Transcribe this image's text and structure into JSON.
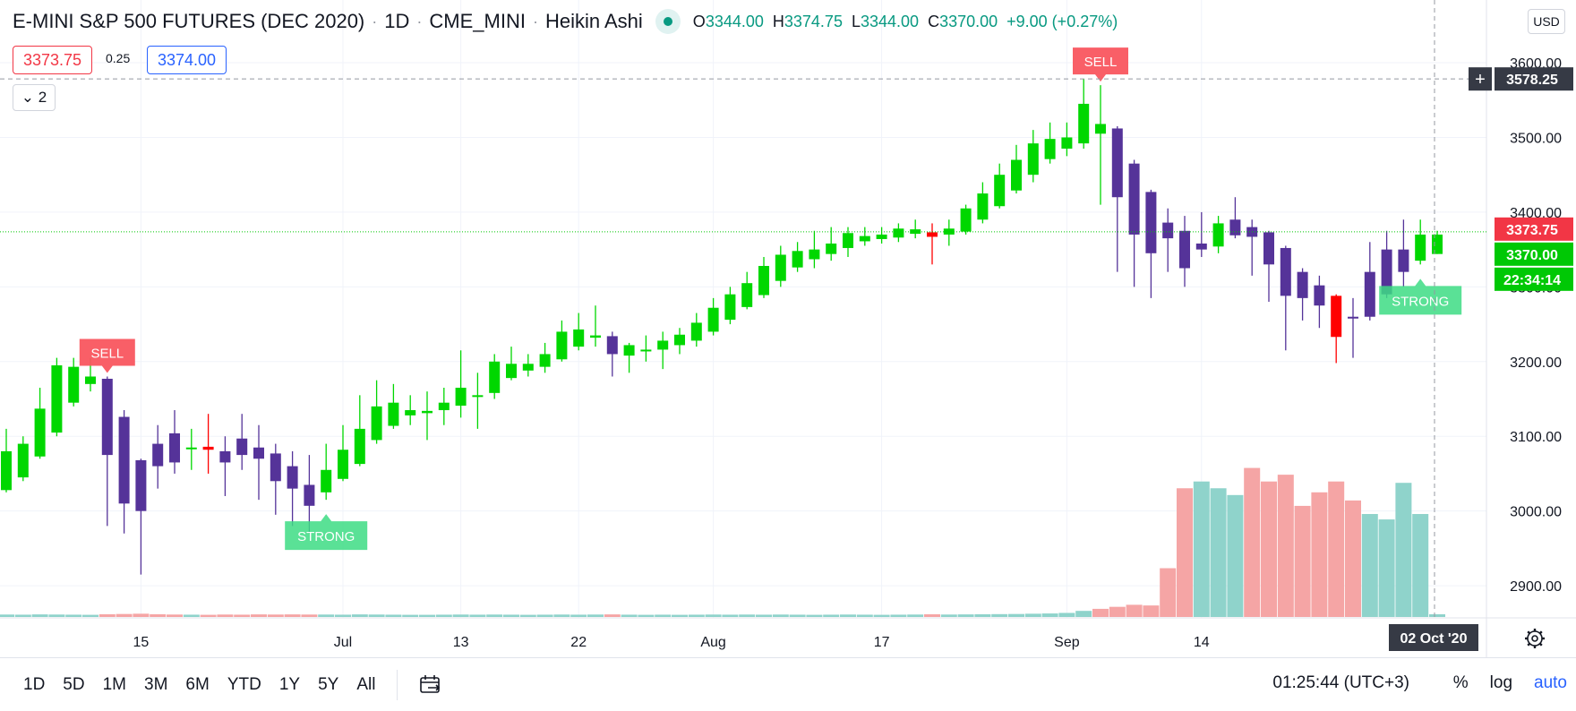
{
  "header": {
    "symbol": "E-MINI S&P 500 FUTURES (DEC 2020)",
    "interval": "1D",
    "exchange": "CME_MINI",
    "chart_style": "Heikin Ashi",
    "ohlc": {
      "o_label": "O",
      "o": "3344.00",
      "h_label": "H",
      "h": "3374.75",
      "l_label": "L",
      "l": "3344.00",
      "c_label": "C",
      "c": "3370.00",
      "change": "+9.00 (+0.27%)"
    }
  },
  "quote": {
    "bid": "3373.75",
    "spread": "0.25",
    "ask": "3374.00"
  },
  "indicators_toggle": {
    "count": "2"
  },
  "price_axis": {
    "currency_button": "USD",
    "crosshair_label": "3578.25",
    "last_price_label": "3373.75",
    "close_label": "3370.00",
    "countdown_label": "22:34:14"
  },
  "time_axis": {
    "crosshair_label": "02 Oct '20"
  },
  "signals": {
    "sell_label": "SELL",
    "strong_label": "STRONG"
  },
  "bottom_toolbar": {
    "ranges": [
      "1D",
      "5D",
      "1M",
      "3M",
      "6M",
      "YTD",
      "1Y",
      "5Y",
      "All"
    ],
    "clock": "01:25:44 (UTC+3)",
    "percent_label": "%",
    "log_label": "log",
    "auto_label": "auto"
  },
  "colors": {
    "bull": "#00d700",
    "bear": "#553399",
    "alert_bar": "#ff0000",
    "sell_signal": "#f9565f",
    "strong_signal": "#3ddc84",
    "volume_up": "#8fd3cb",
    "volume_down": "#f5a5a5",
    "last_price_bg": "#f23645",
    "close_bg": "#00c805"
  },
  "chart_data": {
    "type": "candlestick",
    "title": "E-MINI S&P 500 FUTURES (DEC 2020)",
    "interval": "1D",
    "ylim": [
      2845,
      3630
    ],
    "y_ticks": [
      2900,
      3000,
      3100,
      3200,
      3300,
      3400,
      3500,
      3600
    ],
    "y_tick_labels": [
      "2900.00",
      "3000.00",
      "3100.00",
      "3200.00",
      "3300.00",
      "3400.00",
      "3500.00",
      "3600.00"
    ],
    "x_ticks": [
      "15",
      "Jul",
      "13",
      "22",
      "Aug",
      "17",
      "Sep",
      "14"
    ],
    "x_tick_index": [
      8,
      20,
      27,
      34,
      42,
      52,
      63,
      71
    ],
    "grid": true,
    "candles": [
      {
        "o": 3028,
        "h": 3110,
        "l": 3025,
        "c": 3080,
        "bar": "bull"
      },
      {
        "o": 3045,
        "h": 3100,
        "l": 3040,
        "c": 3090,
        "bar": "bull"
      },
      {
        "o": 3073,
        "h": 3165,
        "l": 3070,
        "c": 3137,
        "bar": "bull"
      },
      {
        "o": 3105,
        "h": 3205,
        "l": 3100,
        "c": 3195,
        "bar": "bull"
      },
      {
        "o": 3145,
        "h": 3205,
        "l": 3140,
        "c": 3193,
        "bar": "bull"
      },
      {
        "o": 3170,
        "h": 3205,
        "l": 3160,
        "c": 3180,
        "bar": "bull"
      },
      {
        "o": 3177,
        "h": 3180,
        "l": 2980,
        "c": 3075,
        "bar": "bear"
      },
      {
        "o": 3126,
        "h": 3135,
        "l": 2970,
        "c": 3010,
        "bar": "bear"
      },
      {
        "o": 3068,
        "h": 3070,
        "l": 2915,
        "c": 3000,
        "bar": "bear"
      },
      {
        "o": 3090,
        "h": 3115,
        "l": 3030,
        "c": 3060,
        "bar": "bear"
      },
      {
        "o": 3104,
        "h": 3135,
        "l": 3050,
        "c": 3065,
        "bar": "bear"
      },
      {
        "o": 3084,
        "h": 3110,
        "l": 3055,
        "c": 3085,
        "bar": "bull"
      },
      {
        "o": 3086,
        "h": 3130,
        "l": 3050,
        "c": 3082,
        "bar": "alert"
      },
      {
        "o": 3080,
        "h": 3100,
        "l": 3020,
        "c": 3065,
        "bar": "bear"
      },
      {
        "o": 3097,
        "h": 3130,
        "l": 3055,
        "c": 3075,
        "bar": "bear"
      },
      {
        "o": 3085,
        "h": 3115,
        "l": 3015,
        "c": 3070,
        "bar": "bear"
      },
      {
        "o": 3077,
        "h": 3090,
        "l": 2995,
        "c": 3040,
        "bar": "bear"
      },
      {
        "o": 3060,
        "h": 3080,
        "l": 2980,
        "c": 3030,
        "bar": "bear"
      },
      {
        "o": 3035,
        "h": 3075,
        "l": 2970,
        "c": 3007,
        "bar": "bear"
      },
      {
        "o": 3025,
        "h": 3090,
        "l": 3015,
        "c": 3055,
        "bar": "bull"
      },
      {
        "o": 3043,
        "h": 3115,
        "l": 3040,
        "c": 3082,
        "bar": "bull"
      },
      {
        "o": 3063,
        "h": 3155,
        "l": 3060,
        "c": 3110,
        "bar": "bull"
      },
      {
        "o": 3095,
        "h": 3175,
        "l": 3090,
        "c": 3140,
        "bar": "bull"
      },
      {
        "o": 3114,
        "h": 3170,
        "l": 3110,
        "c": 3145,
        "bar": "bull"
      },
      {
        "o": 3128,
        "h": 3155,
        "l": 3115,
        "c": 3135,
        "bar": "bull"
      },
      {
        "o": 3131,
        "h": 3160,
        "l": 3095,
        "c": 3134,
        "bar": "bull"
      },
      {
        "o": 3135,
        "h": 3165,
        "l": 3115,
        "c": 3145,
        "bar": "bull"
      },
      {
        "o": 3141,
        "h": 3215,
        "l": 3125,
        "c": 3165,
        "bar": "bull"
      },
      {
        "o": 3153,
        "h": 3185,
        "l": 3110,
        "c": 3155,
        "bar": "bull"
      },
      {
        "o": 3158,
        "h": 3210,
        "l": 3150,
        "c": 3200,
        "bar": "bull"
      },
      {
        "o": 3178,
        "h": 3220,
        "l": 3175,
        "c": 3197,
        "bar": "bull"
      },
      {
        "o": 3188,
        "h": 3210,
        "l": 3180,
        "c": 3197,
        "bar": "bull"
      },
      {
        "o": 3193,
        "h": 3225,
        "l": 3185,
        "c": 3210,
        "bar": "bull"
      },
      {
        "o": 3203,
        "h": 3255,
        "l": 3200,
        "c": 3240,
        "bar": "bull"
      },
      {
        "o": 3220,
        "h": 3265,
        "l": 3215,
        "c": 3243,
        "bar": "bull"
      },
      {
        "o": 3232,
        "h": 3275,
        "l": 3220,
        "c": 3235,
        "bar": "bull"
      },
      {
        "o": 3234,
        "h": 3240,
        "l": 3180,
        "c": 3210,
        "bar": "bear"
      },
      {
        "o": 3208,
        "h": 3225,
        "l": 3185,
        "c": 3222,
        "bar": "bull"
      },
      {
        "o": 3215,
        "h": 3235,
        "l": 3200,
        "c": 3216,
        "bar": "bull"
      },
      {
        "o": 3216,
        "h": 3240,
        "l": 3190,
        "c": 3228,
        "bar": "bull"
      },
      {
        "o": 3222,
        "h": 3245,
        "l": 3210,
        "c": 3236,
        "bar": "bull"
      },
      {
        "o": 3228,
        "h": 3265,
        "l": 3220,
        "c": 3252,
        "bar": "bull"
      },
      {
        "o": 3240,
        "h": 3285,
        "l": 3235,
        "c": 3272,
        "bar": "bull"
      },
      {
        "o": 3256,
        "h": 3300,
        "l": 3250,
        "c": 3290,
        "bar": "bull"
      },
      {
        "o": 3273,
        "h": 3320,
        "l": 3270,
        "c": 3305,
        "bar": "bull"
      },
      {
        "o": 3289,
        "h": 3340,
        "l": 3285,
        "c": 3328,
        "bar": "bull"
      },
      {
        "o": 3308,
        "h": 3355,
        "l": 3300,
        "c": 3343,
        "bar": "bull"
      },
      {
        "o": 3326,
        "h": 3360,
        "l": 3320,
        "c": 3348,
        "bar": "bull"
      },
      {
        "o": 3337,
        "h": 3375,
        "l": 3325,
        "c": 3350,
        "bar": "bull"
      },
      {
        "o": 3344,
        "h": 3380,
        "l": 3335,
        "c": 3358,
        "bar": "bull"
      },
      {
        "o": 3352,
        "h": 3380,
        "l": 3340,
        "c": 3372,
        "bar": "bull"
      },
      {
        "o": 3361,
        "h": 3380,
        "l": 3355,
        "c": 3368,
        "bar": "bull"
      },
      {
        "o": 3364,
        "h": 3380,
        "l": 3358,
        "c": 3370,
        "bar": "bull"
      },
      {
        "o": 3366,
        "h": 3385,
        "l": 3360,
        "c": 3378,
        "bar": "bull"
      },
      {
        "o": 3371,
        "h": 3390,
        "l": 3365,
        "c": 3377,
        "bar": "bull"
      },
      {
        "o": 3373,
        "h": 3385,
        "l": 3330,
        "c": 3367,
        "bar": "alert"
      },
      {
        "o": 3370,
        "h": 3390,
        "l": 3355,
        "c": 3378,
        "bar": "bull"
      },
      {
        "o": 3374,
        "h": 3410,
        "l": 3370,
        "c": 3405,
        "bar": "bull"
      },
      {
        "o": 3390,
        "h": 3440,
        "l": 3385,
        "c": 3425,
        "bar": "bull"
      },
      {
        "o": 3408,
        "h": 3465,
        "l": 3405,
        "c": 3450,
        "bar": "bull"
      },
      {
        "o": 3429,
        "h": 3490,
        "l": 3425,
        "c": 3470,
        "bar": "bull"
      },
      {
        "o": 3450,
        "h": 3510,
        "l": 3440,
        "c": 3492,
        "bar": "bull"
      },
      {
        "o": 3471,
        "h": 3520,
        "l": 3465,
        "c": 3498,
        "bar": "bull"
      },
      {
        "o": 3485,
        "h": 3520,
        "l": 3475,
        "c": 3500,
        "bar": "bull"
      },
      {
        "o": 3492,
        "h": 3578,
        "l": 3485,
        "c": 3545,
        "bar": "bull"
      },
      {
        "o": 3518,
        "h": 3570,
        "l": 3410,
        "c": 3505,
        "bar": "bull"
      },
      {
        "o": 3512,
        "h": 3515,
        "l": 3320,
        "c": 3420,
        "bar": "bear"
      },
      {
        "o": 3465,
        "h": 3470,
        "l": 3300,
        "c": 3370,
        "bar": "bear"
      },
      {
        "o": 3427,
        "h": 3430,
        "l": 3285,
        "c": 3345,
        "bar": "bear"
      },
      {
        "o": 3386,
        "h": 3405,
        "l": 3320,
        "c": 3365,
        "bar": "bear"
      },
      {
        "o": 3375,
        "h": 3395,
        "l": 3300,
        "c": 3325,
        "bar": "bear"
      },
      {
        "o": 3350,
        "h": 3400,
        "l": 3340,
        "c": 3358,
        "bar": "bear"
      },
      {
        "o": 3354,
        "h": 3395,
        "l": 3345,
        "c": 3385,
        "bar": "bull"
      },
      {
        "o": 3369,
        "h": 3420,
        "l": 3365,
        "c": 3390,
        "bar": "bear"
      },
      {
        "o": 3380,
        "h": 3390,
        "l": 3315,
        "c": 3367,
        "bar": "bear"
      },
      {
        "o": 3373,
        "h": 3375,
        "l": 3280,
        "c": 3330,
        "bar": "bear"
      },
      {
        "o": 3352,
        "h": 3355,
        "l": 3215,
        "c": 3288,
        "bar": "bear"
      },
      {
        "o": 3320,
        "h": 3325,
        "l": 3255,
        "c": 3285,
        "bar": "bear"
      },
      {
        "o": 3302,
        "h": 3315,
        "l": 3245,
        "c": 3275,
        "bar": "bear"
      },
      {
        "o": 3288,
        "h": 3290,
        "l": 3198,
        "c": 3233,
        "bar": "alert"
      },
      {
        "o": 3260,
        "h": 3285,
        "l": 3205,
        "c": 3260,
        "bar": "bear"
      },
      {
        "o": 3260,
        "h": 3360,
        "l": 3255,
        "c": 3320,
        "bar": "bear"
      },
      {
        "o": 3290,
        "h": 3375,
        "l": 3285,
        "c": 3350,
        "bar": "bear"
      },
      {
        "o": 3320,
        "h": 3390,
        "l": 3300,
        "c": 3350,
        "bar": "bear"
      },
      {
        "o": 3335,
        "h": 3390,
        "l": 3330,
        "c": 3370,
        "bar": "bull"
      },
      {
        "o": 3344,
        "h": 3375,
        "l": 3344,
        "c": 3370,
        "bar": "bull"
      }
    ],
    "volume_max": 1150000,
    "volume": [
      {
        "i": 0,
        "v": 18000,
        "dir": "up"
      },
      {
        "i": 1,
        "v": 17000,
        "dir": "up"
      },
      {
        "i": 2,
        "v": 19000,
        "dir": "up"
      },
      {
        "i": 3,
        "v": 18000,
        "dir": "up"
      },
      {
        "i": 4,
        "v": 17000,
        "dir": "up"
      },
      {
        "i": 5,
        "v": 16000,
        "dir": "up"
      },
      {
        "i": 6,
        "v": 20000,
        "dir": "down"
      },
      {
        "i": 7,
        "v": 22000,
        "dir": "down"
      },
      {
        "i": 8,
        "v": 24000,
        "dir": "down"
      },
      {
        "i": 9,
        "v": 20000,
        "dir": "down"
      },
      {
        "i": 10,
        "v": 18000,
        "dir": "down"
      },
      {
        "i": 11,
        "v": 17000,
        "dir": "up"
      },
      {
        "i": 12,
        "v": 16000,
        "dir": "down"
      },
      {
        "i": 13,
        "v": 18000,
        "dir": "down"
      },
      {
        "i": 14,
        "v": 17000,
        "dir": "down"
      },
      {
        "i": 15,
        "v": 19000,
        "dir": "down"
      },
      {
        "i": 16,
        "v": 18000,
        "dir": "down"
      },
      {
        "i": 17,
        "v": 19000,
        "dir": "down"
      },
      {
        "i": 18,
        "v": 18000,
        "dir": "down"
      },
      {
        "i": 19,
        "v": 18000,
        "dir": "up"
      },
      {
        "i": 20,
        "v": 17000,
        "dir": "up"
      },
      {
        "i": 21,
        "v": 19000,
        "dir": "up"
      },
      {
        "i": 22,
        "v": 18000,
        "dir": "up"
      },
      {
        "i": 23,
        "v": 17000,
        "dir": "up"
      },
      {
        "i": 24,
        "v": 16000,
        "dir": "up"
      },
      {
        "i": 25,
        "v": 16000,
        "dir": "up"
      },
      {
        "i": 26,
        "v": 17000,
        "dir": "up"
      },
      {
        "i": 27,
        "v": 18000,
        "dir": "up"
      },
      {
        "i": 28,
        "v": 17000,
        "dir": "up"
      },
      {
        "i": 29,
        "v": 18000,
        "dir": "up"
      },
      {
        "i": 30,
        "v": 17000,
        "dir": "up"
      },
      {
        "i": 31,
        "v": 16000,
        "dir": "up"
      },
      {
        "i": 32,
        "v": 17000,
        "dir": "up"
      },
      {
        "i": 33,
        "v": 18000,
        "dir": "up"
      },
      {
        "i": 34,
        "v": 17000,
        "dir": "up"
      },
      {
        "i": 35,
        "v": 18000,
        "dir": "up"
      },
      {
        "i": 36,
        "v": 19000,
        "dir": "down"
      },
      {
        "i": 37,
        "v": 17000,
        "dir": "up"
      },
      {
        "i": 38,
        "v": 16000,
        "dir": "up"
      },
      {
        "i": 39,
        "v": 17000,
        "dir": "up"
      },
      {
        "i": 40,
        "v": 16000,
        "dir": "up"
      },
      {
        "i": 41,
        "v": 17000,
        "dir": "up"
      },
      {
        "i": 42,
        "v": 18000,
        "dir": "up"
      },
      {
        "i": 43,
        "v": 17000,
        "dir": "up"
      },
      {
        "i": 44,
        "v": 18000,
        "dir": "up"
      },
      {
        "i": 45,
        "v": 17000,
        "dir": "up"
      },
      {
        "i": 46,
        "v": 18000,
        "dir": "up"
      },
      {
        "i": 47,
        "v": 17000,
        "dir": "up"
      },
      {
        "i": 48,
        "v": 16000,
        "dir": "up"
      },
      {
        "i": 49,
        "v": 17000,
        "dir": "up"
      },
      {
        "i": 50,
        "v": 18000,
        "dir": "up"
      },
      {
        "i": 51,
        "v": 17000,
        "dir": "up"
      },
      {
        "i": 52,
        "v": 16000,
        "dir": "up"
      },
      {
        "i": 53,
        "v": 17000,
        "dir": "up"
      },
      {
        "i": 54,
        "v": 18000,
        "dir": "up"
      },
      {
        "i": 55,
        "v": 20000,
        "dir": "down"
      },
      {
        "i": 56,
        "v": 18000,
        "dir": "up"
      },
      {
        "i": 57,
        "v": 19000,
        "dir": "up"
      },
      {
        "i": 58,
        "v": 20000,
        "dir": "up"
      },
      {
        "i": 59,
        "v": 21000,
        "dir": "up"
      },
      {
        "i": 60,
        "v": 22000,
        "dir": "up"
      },
      {
        "i": 61,
        "v": 24000,
        "dir": "up"
      },
      {
        "i": 62,
        "v": 26000,
        "dir": "up"
      },
      {
        "i": 63,
        "v": 30000,
        "dir": "up"
      },
      {
        "i": 64,
        "v": 45000,
        "dir": "up"
      },
      {
        "i": 65,
        "v": 60000,
        "dir": "down"
      },
      {
        "i": 66,
        "v": 75000,
        "dir": "down"
      },
      {
        "i": 67,
        "v": 90000,
        "dir": "down"
      },
      {
        "i": 68,
        "v": 85000,
        "dir": "down"
      },
      {
        "i": 69,
        "v": 360000,
        "dir": "down"
      },
      {
        "i": 70,
        "v": 950000,
        "dir": "down"
      },
      {
        "i": 71,
        "v": 1000000,
        "dir": "up"
      },
      {
        "i": 72,
        "v": 950000,
        "dir": "up"
      },
      {
        "i": 73,
        "v": 900000,
        "dir": "up"
      },
      {
        "i": 74,
        "v": 1100000,
        "dir": "down"
      },
      {
        "i": 75,
        "v": 1000000,
        "dir": "down"
      },
      {
        "i": 76,
        "v": 1050000,
        "dir": "down"
      },
      {
        "i": 77,
        "v": 820000,
        "dir": "down"
      },
      {
        "i": 78,
        "v": 920000,
        "dir": "down"
      },
      {
        "i": 79,
        "v": 1000000,
        "dir": "down"
      },
      {
        "i": 80,
        "v": 860000,
        "dir": "down"
      },
      {
        "i": 81,
        "v": 760000,
        "dir": "up"
      },
      {
        "i": 82,
        "v": 720000,
        "dir": "up"
      },
      {
        "i": 83,
        "v": 990000,
        "dir": "up"
      },
      {
        "i": 84,
        "v": 760000,
        "dir": "up"
      },
      {
        "i": 85,
        "v": 20000,
        "dir": "up"
      }
    ],
    "signals": [
      {
        "index": 6,
        "type": "sell",
        "label": "SELL"
      },
      {
        "index": 19,
        "type": "strong",
        "label": "STRONG"
      },
      {
        "index": 65,
        "type": "sell",
        "label": "SELL"
      },
      {
        "index": 84,
        "type": "strong",
        "label": "STRONG"
      }
    ]
  }
}
